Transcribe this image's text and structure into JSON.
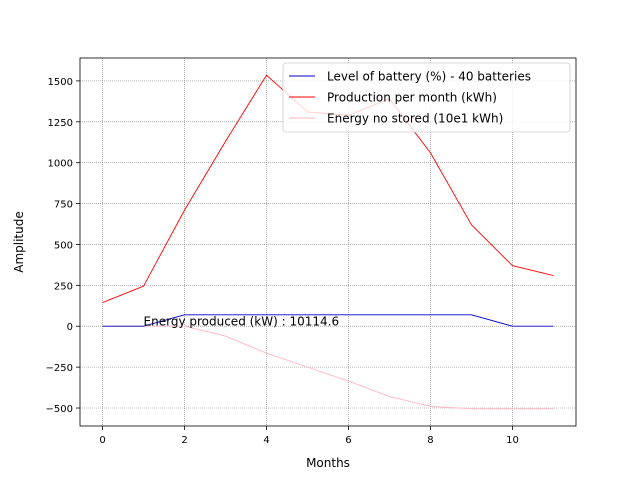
{
  "chart_data": {
    "type": "line",
    "title": "",
    "xlabel": "Months",
    "ylabel": "Amplitude",
    "xlim": [
      -0.55,
      11.55
    ],
    "ylim": [
      -610,
      1640
    ],
    "xticks": [
      0,
      2,
      4,
      6,
      8,
      10
    ],
    "yticks": [
      -500,
      -250,
      0,
      250,
      500,
      750,
      1000,
      1250,
      1500
    ],
    "xtick_labels": [
      "0",
      "2",
      "4",
      "6",
      "8",
      "10"
    ],
    "ytick_labels": [
      "−500",
      "−250",
      "0",
      "250",
      "500",
      "750",
      "1000",
      "1250",
      "1500"
    ],
    "grid": true,
    "legend_position": "upper right",
    "x": [
      0,
      1,
      2,
      3,
      4,
      5,
      6,
      7,
      8,
      9,
      10,
      11
    ],
    "series": [
      {
        "name": "Level of battery (%) - 40 batteries",
        "color": "#0000cc",
        "values": [
          0,
          0,
          70,
          70,
          70,
          70,
          70,
          70,
          70,
          70,
          0,
          0
        ]
      },
      {
        "name": "Production per month (kWh)",
        "color": "#ff0000",
        "values": [
          145,
          245,
          710,
          1130,
          1535,
          1310,
          1290,
          1390,
          1060,
          620,
          370,
          310
        ]
      },
      {
        "name": "Energy no stored (10e1 kWh)",
        "color": "#ffb6c1",
        "values": [
          0,
          0,
          0,
          -60,
          -165,
          -250,
          -335,
          -430,
          -490,
          -505,
          -505,
          -505
        ]
      }
    ],
    "annotation": {
      "text": "Energy produced (kW) : 10114.6",
      "x": 1,
      "y": 0
    }
  }
}
